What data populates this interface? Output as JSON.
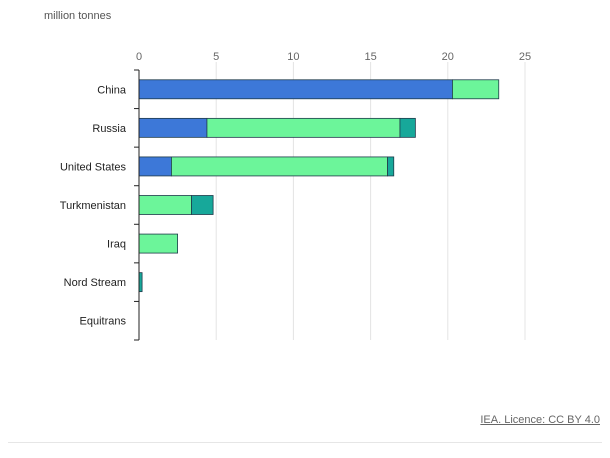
{
  "chart_data": {
    "type": "bar",
    "orientation": "horizontal",
    "stacked": true,
    "unit_label": "million tonnes",
    "categories": [
      "China",
      "Russia",
      "United States",
      "Turkmenistan",
      "Iraq",
      "Nord Stream",
      "Equitrans"
    ],
    "x_ticks": [
      "0",
      "5",
      "10",
      "15",
      "20",
      "25"
    ],
    "xlim": [
      0,
      25
    ],
    "grid": true,
    "legend": "none",
    "series": [
      {
        "color": "#3d78d8",
        "values": [
          20.3,
          4.4,
          2.1,
          0,
          0,
          0,
          0
        ]
      },
      {
        "color": "#6cf59a",
        "values": [
          3.0,
          12.5,
          14.0,
          3.4,
          2.5,
          0,
          0
        ]
      },
      {
        "color": "#17a89a",
        "values": [
          0,
          1.0,
          0.4,
          1.4,
          0,
          0.2,
          0
        ]
      }
    ]
  },
  "credit": "IEA. Licence: CC BY 4.0"
}
